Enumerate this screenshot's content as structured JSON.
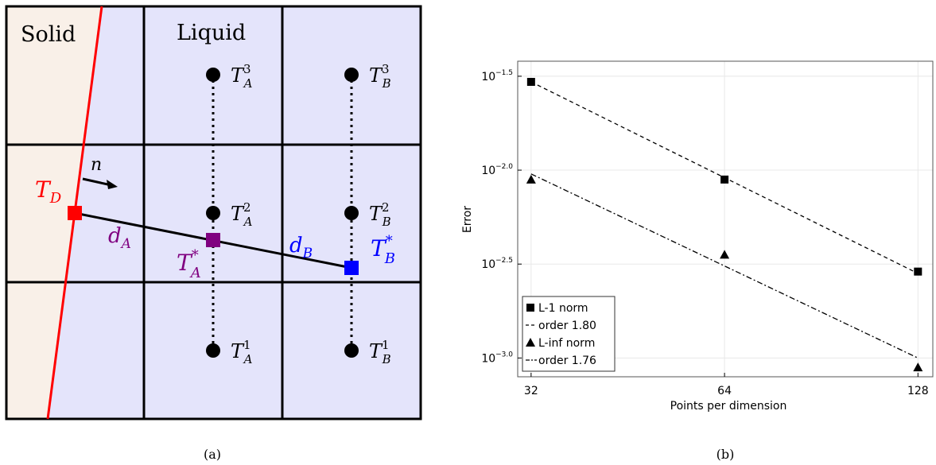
{
  "diagram": {
    "label_solid": "Solid",
    "label_liquid": "Liquid",
    "normal_label": "n",
    "td_label": "T",
    "td_sub": "D",
    "da_label": "d",
    "da_sub": "A",
    "db_label": "d",
    "db_sub": "B",
    "tastar_main": "T",
    "tastar_sup": "*",
    "tastar_sub": "A",
    "tbstar_main": "T",
    "tbstar_sup": "*",
    "tbstar_sub": "B",
    "points": [
      {
        "main": "T",
        "sup": "3",
        "sub": "A"
      },
      {
        "main": "T",
        "sup": "2",
        "sub": "A"
      },
      {
        "main": "T",
        "sup": "1",
        "sub": "A"
      },
      {
        "main": "T",
        "sup": "3",
        "sub": "B"
      },
      {
        "main": "T",
        "sup": "2",
        "sub": "B"
      },
      {
        "main": "T",
        "sup": "1",
        "sub": "B"
      }
    ],
    "caption": "(a)",
    "colors": {
      "solid": "#f9f0e8",
      "liquid": "#e4e4fb",
      "interface": "#ff0000",
      "td": "#ff0000",
      "purple": "#800080",
      "blue": "#0000ff"
    }
  },
  "chart_data": {
    "type": "scatter",
    "caption": "(b)",
    "xlabel": "Points per dimension",
    "ylabel": "Error",
    "x_scale": "log",
    "y_scale": "log",
    "xticks": [
      {
        "value": 32,
        "label": "32"
      },
      {
        "value": 64,
        "label": "64"
      },
      {
        "value": 128,
        "label": "128"
      }
    ],
    "yticks": [
      {
        "value": -1.5,
        "base": "10",
        "exp": "−1.5"
      },
      {
        "value": -2.0,
        "base": "10",
        "exp": "−2.0"
      },
      {
        "value": -2.5,
        "base": "10",
        "exp": "−2.5"
      },
      {
        "value": -3.0,
        "base": "10",
        "exp": "−3.0"
      }
    ],
    "xlim": [
      30.5,
      135
    ],
    "ylim_log10": [
      -3.1,
      -1.42
    ],
    "grid": true,
    "legend_position": "bottom-left",
    "series": [
      {
        "name": "L-1 norm",
        "marker": "square",
        "x": [
          32,
          64,
          128
        ],
        "log10_y": [
          -1.53,
          -2.05,
          -2.54
        ]
      },
      {
        "name": "order 1.80",
        "style": "dashed",
        "x": [
          32,
          128
        ],
        "log10_y": [
          -1.53,
          -2.55
        ]
      },
      {
        "name": "L-inf norm",
        "marker": "triangle",
        "x": [
          32,
          64,
          128
        ],
        "log10_y": [
          -2.05,
          -2.45,
          -3.05
        ]
      },
      {
        "name": "order 1.76",
        "style": "dashdot",
        "x": [
          32,
          128
        ],
        "log10_y": [
          -2.02,
          -3.0
        ]
      }
    ]
  }
}
